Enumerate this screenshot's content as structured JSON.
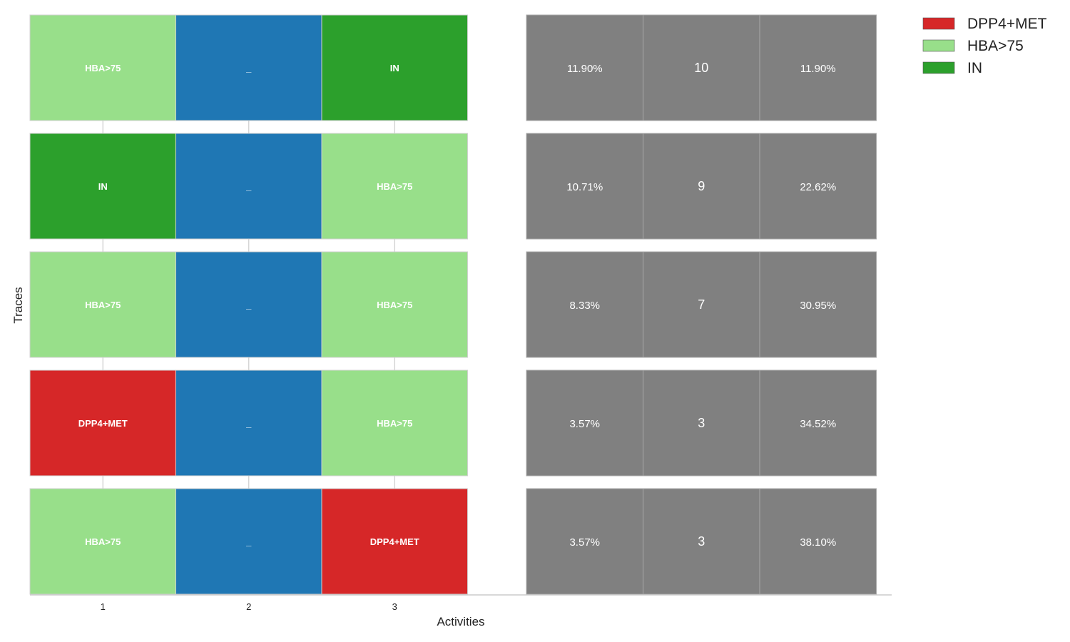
{
  "chart_data": {
    "type": "table",
    "xlabel": "Activities",
    "ylabel": "Traces",
    "x_ticks": [
      "1",
      "2",
      "3"
    ],
    "colors": {
      "DPP4+MET": "#d62728",
      "HBA>75": "#98df8a",
      "IN": "#2ca02c",
      "_": "#1f77b4",
      "stats": "#808080"
    },
    "legend": [
      "DPP4+MET",
      "HBA>75",
      "IN"
    ],
    "legend_position": "top-right",
    "traces": [
      {
        "activities": [
          "HBA>75",
          "_",
          "IN"
        ],
        "percent": "11.90%",
        "count": "10",
        "cumulative": "11.90%"
      },
      {
        "activities": [
          "IN",
          "_",
          "HBA>75"
        ],
        "percent": "10.71%",
        "count": "9",
        "cumulative": "22.62%"
      },
      {
        "activities": [
          "HBA>75",
          "_",
          "HBA>75"
        ],
        "percent": "8.33%",
        "count": "7",
        "cumulative": "30.95%"
      },
      {
        "activities": [
          "DPP4+MET",
          "_",
          "HBA>75"
        ],
        "percent": "3.57%",
        "count": "3",
        "cumulative": "34.52%"
      },
      {
        "activities": [
          "HBA>75",
          "_",
          "DPP4+MET"
        ],
        "percent": "3.57%",
        "count": "3",
        "cumulative": "38.10%"
      }
    ]
  }
}
